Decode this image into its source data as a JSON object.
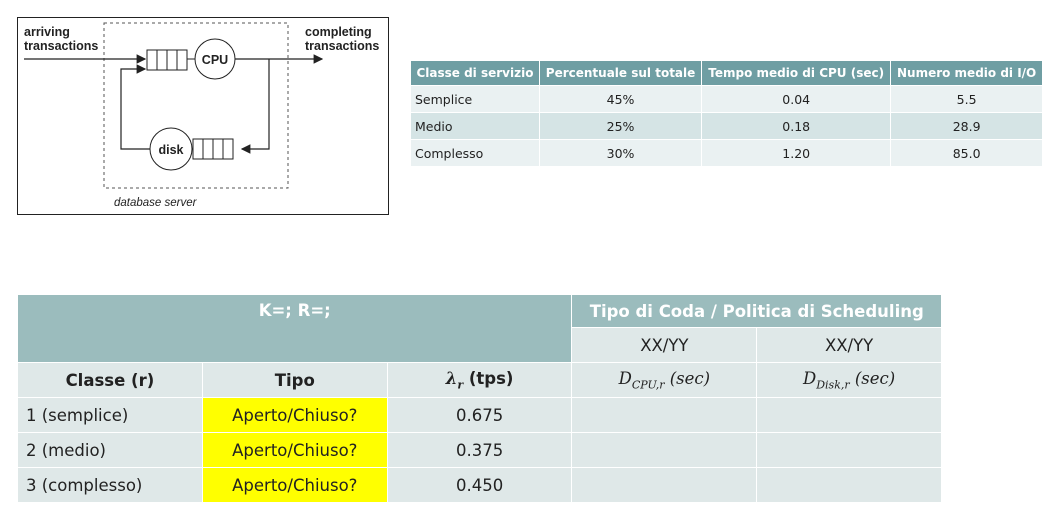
{
  "diagram": {
    "arriving": [
      "arriving",
      "transactions"
    ],
    "completing": [
      "completing",
      "transactions"
    ],
    "cpu": "CPU",
    "disk": "disk",
    "server": "database server"
  },
  "class_table": {
    "headers": [
      "Classe di servizio",
      "Percentuale sul totale",
      "Tempo medio di CPU (sec)",
      "Numero medio di I/O"
    ],
    "rows": [
      [
        "Semplice",
        "45%",
        "0.04",
        "5.5"
      ],
      [
        "Medio",
        "25%",
        "0.18",
        "28.9"
      ],
      [
        "Complesso",
        "30%",
        "1.20",
        "85.0"
      ]
    ]
  },
  "model_table": {
    "title": "K=; R=;",
    "queue_header": "Tipo di Coda / Politica di Scheduling",
    "policy_cpu": "XX/YY",
    "policy_disk": "XX/YY",
    "col_class": "Classe (r)",
    "col_type": "Tipo",
    "col_lambda_sym": "λ",
    "col_lambda_sub": "r",
    "col_lambda_unit": " (tps)",
    "col_dcpu_sym": "D",
    "col_dcpu_sub": "CPU,r",
    "col_dcpu_unit": " (sec)",
    "col_ddisk_sym": "D",
    "col_ddisk_sub": "Disk,r",
    "col_ddisk_unit": " (sec)",
    "rows": [
      {
        "cls": "1 (semplice)",
        "tipo": "Aperto/Chiuso?",
        "lambda": "0.675",
        "dcpu": "",
        "ddisk": ""
      },
      {
        "cls": "2 (medio)",
        "tipo": "Aperto/Chiuso?",
        "lambda": "0.375",
        "dcpu": "",
        "ddisk": ""
      },
      {
        "cls": "3 (complesso)",
        "tipo": "Aperto/Chiuso?",
        "lambda": "0.450",
        "dcpu": "",
        "ddisk": ""
      }
    ]
  }
}
